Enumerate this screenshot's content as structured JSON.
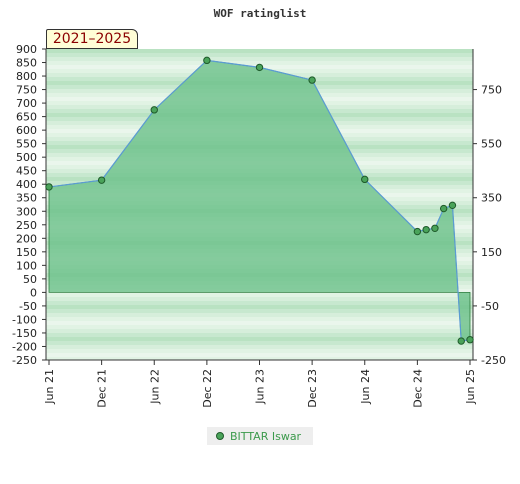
{
  "chart_data": {
    "type": "area",
    "title": "WOF ratinglist",
    "period_label": "2021–2025",
    "x_ticks": [
      "Jun 21",
      "Dec 21",
      "Jun 22",
      "Dec 22",
      "Jun 23",
      "Dec 23",
      "Jun 24",
      "Dec 24",
      "Jun 25"
    ],
    "y_left_ticks": [
      900,
      850,
      800,
      750,
      700,
      650,
      600,
      550,
      500,
      450,
      400,
      350,
      300,
      250,
      200,
      150,
      100,
      50,
      0,
      -50,
      -100,
      -150,
      -200,
      -250
    ],
    "y_right_ticks": [
      750,
      550,
      350,
      150,
      -50,
      -250
    ],
    "ylim": [
      -250,
      900
    ],
    "xlim": [
      0,
      48
    ],
    "grid": "horizontal bands",
    "legend_position": "bottom-center",
    "colors": {
      "line": "#5b9bd5",
      "fill": "#6cc08a",
      "marker": "#4aa35a",
      "marker_edge": "#1e5a2a",
      "band_dark": "#b9e2c2",
      "band_light": "#eaf6ec"
    },
    "series": [
      {
        "name": "BITTAR Iswar",
        "points": [
          {
            "x": 0,
            "y": 390
          },
          {
            "x": 6,
            "y": 415
          },
          {
            "x": 12,
            "y": 675
          },
          {
            "x": 18,
            "y": 858
          },
          {
            "x": 24,
            "y": 832
          },
          {
            "x": 30,
            "y": 785
          },
          {
            "x": 36,
            "y": 418
          },
          {
            "x": 42,
            "y": 225
          },
          {
            "x": 43,
            "y": 232
          },
          {
            "x": 44,
            "y": 237
          },
          {
            "x": 45,
            "y": 310
          },
          {
            "x": 46,
            "y": 322
          },
          {
            "x": 47,
            "y": -180
          },
          {
            "x": 48,
            "y": -175
          }
        ]
      }
    ]
  }
}
